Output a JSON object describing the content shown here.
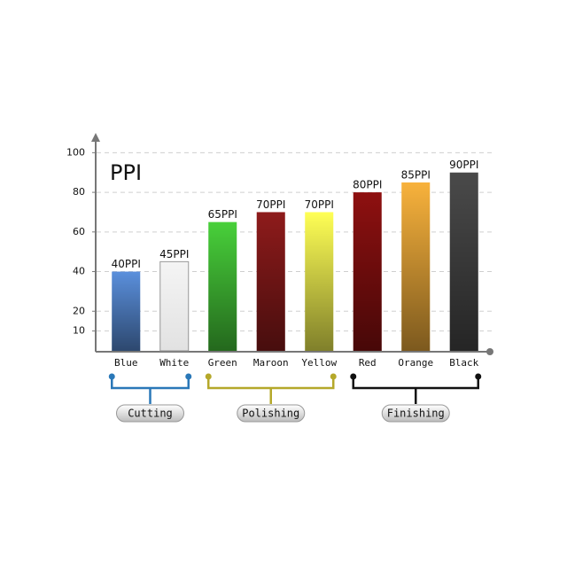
{
  "chart_data": {
    "type": "bar",
    "title": "PPI",
    "categories": [
      "Blue",
      "White",
      "Green",
      "Maroon",
      "Yellow",
      "Red",
      "Orange",
      "Black"
    ],
    "values": [
      40,
      45,
      65,
      70,
      70,
      80,
      85,
      90
    ],
    "value_labels": [
      "40PPI",
      "45PPI",
      "65PPI",
      "70PPI",
      "70PPI",
      "80PPI",
      "85PPI",
      "90PPI"
    ],
    "colors": [
      "#5a8fdc",
      "#f4f4f4",
      "#48d03a",
      "#8e1b1b",
      "#ffff55",
      "#8e1010",
      "#f8b23c",
      "#4a4a4a"
    ],
    "ylim": [
      0,
      110
    ],
    "yticks": [
      10,
      20,
      40,
      60,
      80,
      100
    ],
    "grid": true,
    "groups": [
      {
        "label": "Cutting",
        "color": "#2a78b8",
        "members": [
          "Blue",
          "White"
        ]
      },
      {
        "label": "Polishing",
        "color": "#b5a82a",
        "members": [
          "Green",
          "Maroon",
          "Yellow"
        ]
      },
      {
        "label": "Finishing",
        "color": "#111111",
        "members": [
          "Red",
          "Orange",
          "Black"
        ]
      }
    ]
  }
}
